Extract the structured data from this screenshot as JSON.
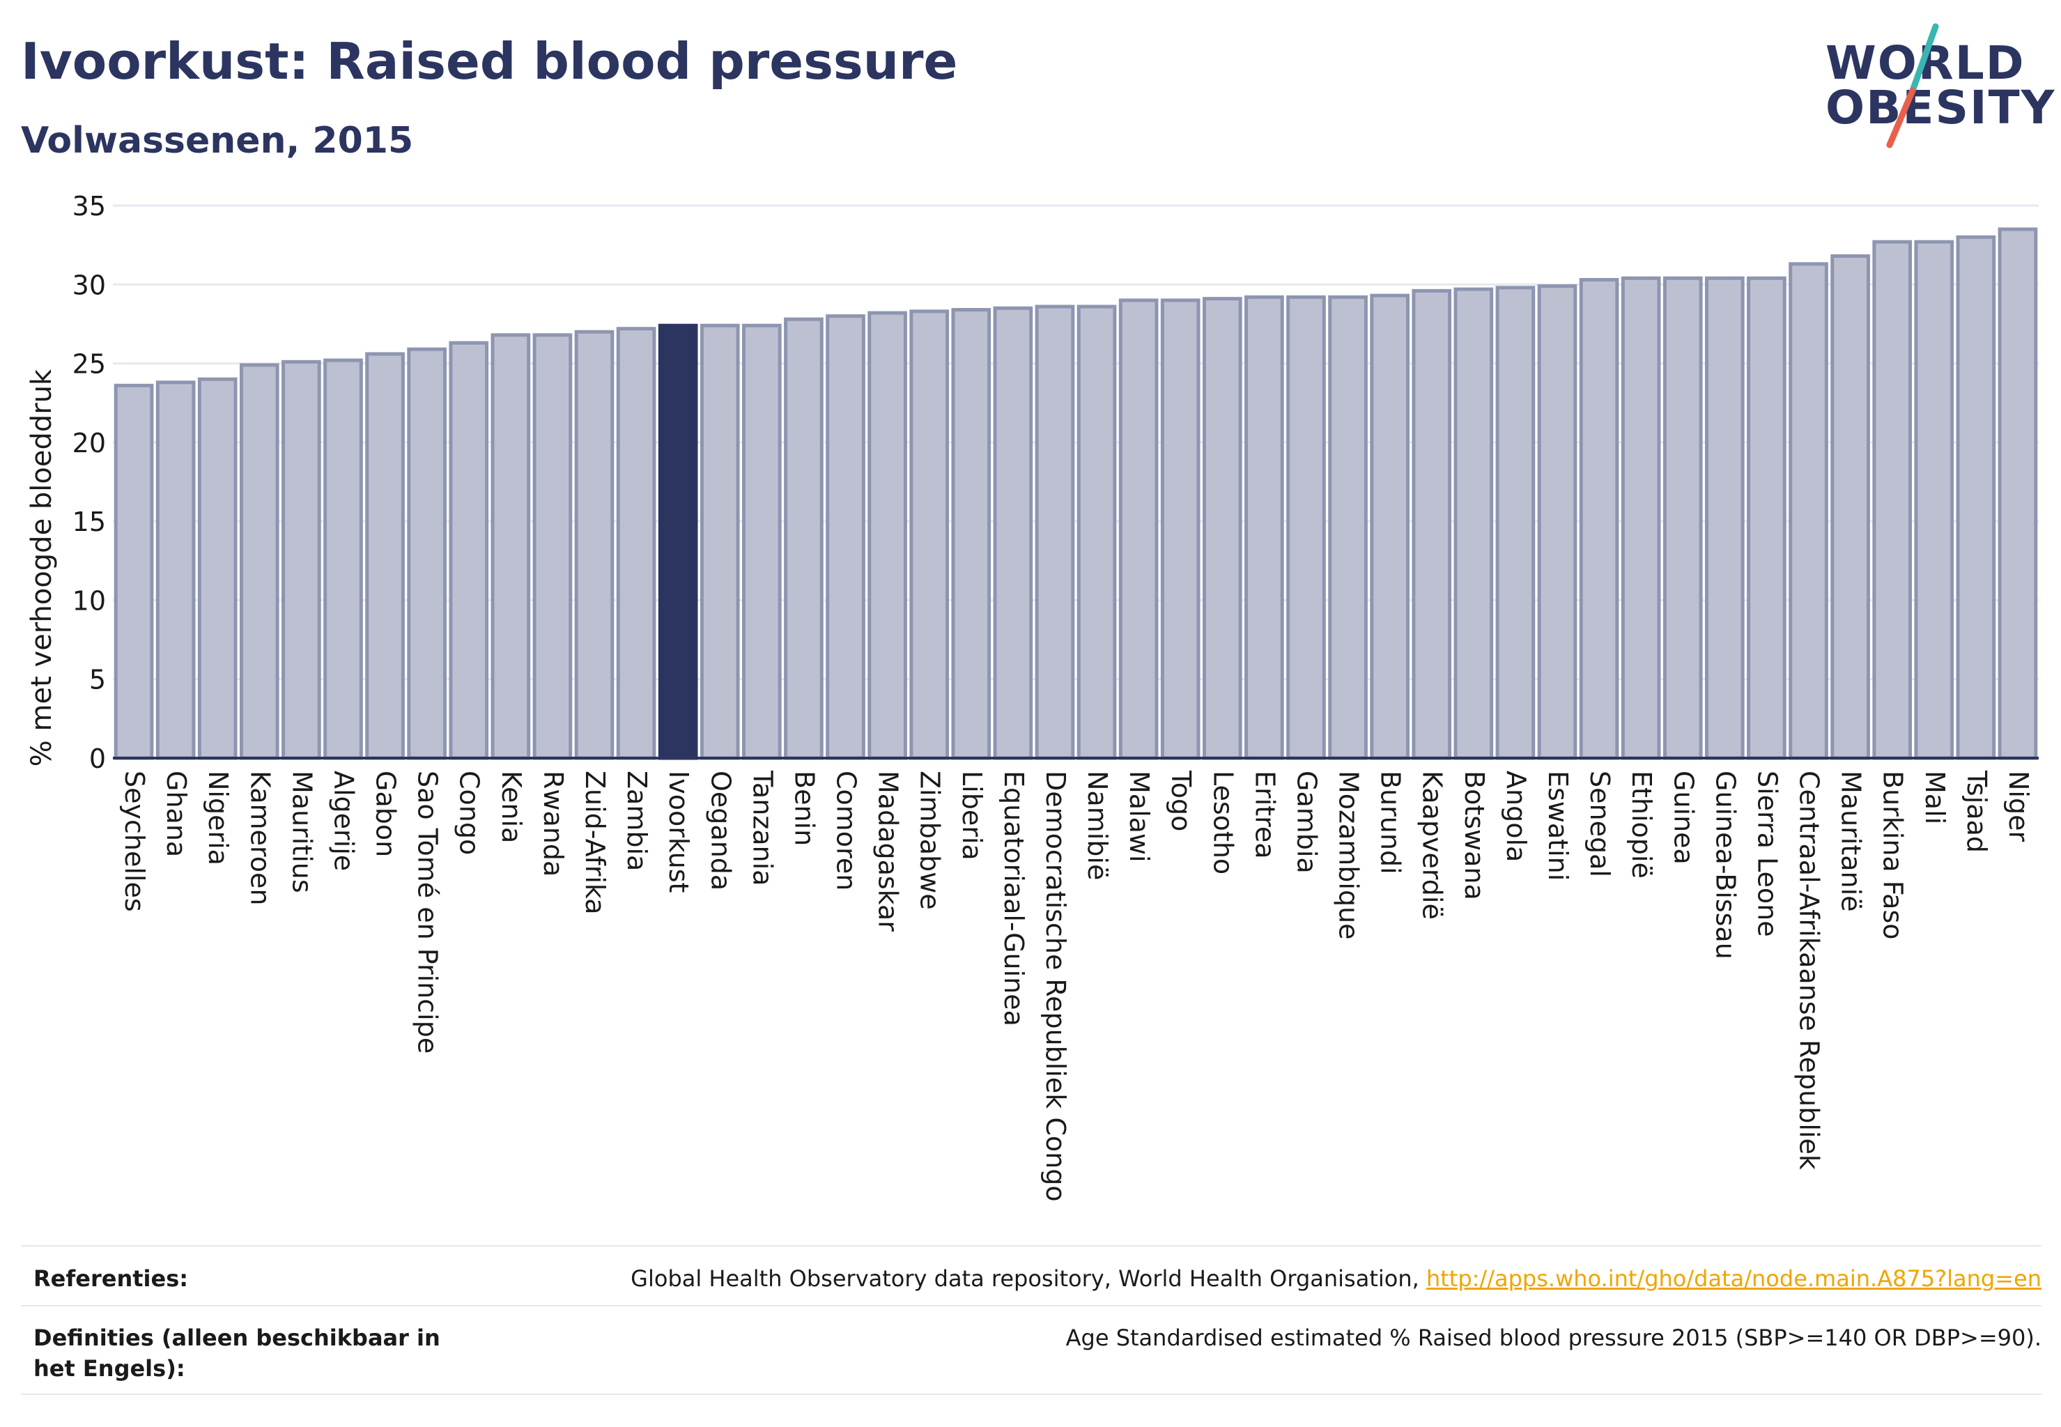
{
  "header": {
    "title": "Ivoorkust: Raised blood pressure",
    "subtitle": "Volwassenen, 2015"
  },
  "logo": {
    "line1": "WORLD",
    "line2": "OBESITY",
    "accent_teal": "#3ab5b0",
    "accent_coral": "#e8604c"
  },
  "chart_data": {
    "type": "bar",
    "ylabel": "% met verhoogde bloeddruk",
    "ylim": [
      0,
      35
    ],
    "yticks": [
      0,
      5,
      10,
      15,
      20,
      25,
      30,
      35
    ],
    "grid": true,
    "highlight": "Ivoorkust",
    "colors": {
      "bar": "#bcc0d0",
      "bar_border": "#8e95b0",
      "highlight": "#2b3560",
      "grid": "#e6e8f0",
      "axis": "#2b3560"
    },
    "categories": [
      "Seychelles",
      "Ghana",
      "Nigeria",
      "Kameroen",
      "Mauritius",
      "Algerije",
      "Gabon",
      "Sao Tomé en Principe",
      "Congo",
      "Kenia",
      "Rwanda",
      "Zuid-Afrika",
      "Zambia",
      "Ivoorkust",
      "Oeganda",
      "Tanzania",
      "Benin",
      "Comoren",
      "Madagaskar",
      "Zimbabwe",
      "Liberia",
      "Equatoriaal-Guinea",
      "Democratische Republiek Congo",
      "Namibië",
      "Malawi",
      "Togo",
      "Lesotho",
      "Eritrea",
      "Gambia",
      "Mozambique",
      "Burundi",
      "Kaapverdië",
      "Botswana",
      "Angola",
      "Eswatini",
      "Senegal",
      "Ethiopië",
      "Guinea",
      "Guinea-Bissau",
      "Sierra Leone",
      "Centraal-Afrikaanse Republiek",
      "Mauritanië",
      "Burkina Faso",
      "Mali",
      "Tsjaad",
      "Niger"
    ],
    "values": [
      23.6,
      23.8,
      24.0,
      24.9,
      25.1,
      25.2,
      25.6,
      25.9,
      26.3,
      26.8,
      26.8,
      27.0,
      27.2,
      27.4,
      27.4,
      27.4,
      27.8,
      28.0,
      28.2,
      28.3,
      28.4,
      28.5,
      28.6,
      28.6,
      29.0,
      29.0,
      29.1,
      29.2,
      29.2,
      29.2,
      29.3,
      29.6,
      29.7,
      29.8,
      29.9,
      30.3,
      30.4,
      30.4,
      30.4,
      30.4,
      31.3,
      31.8,
      32.7,
      32.7,
      33.0,
      33.5
    ]
  },
  "footer": {
    "references_label": "Referenties:",
    "references_text": "Global Health Observatory data repository, World Health Organisation, ",
    "references_link": "http://apps.who.int/gho/data/node.main.A875?lang=en",
    "definitions_label": "Definities (alleen beschikbaar in het Engels):",
    "definitions_text": "Age Standardised estimated % Raised blood pressure 2015 (SBP>=140 OR DBP>=90)."
  }
}
